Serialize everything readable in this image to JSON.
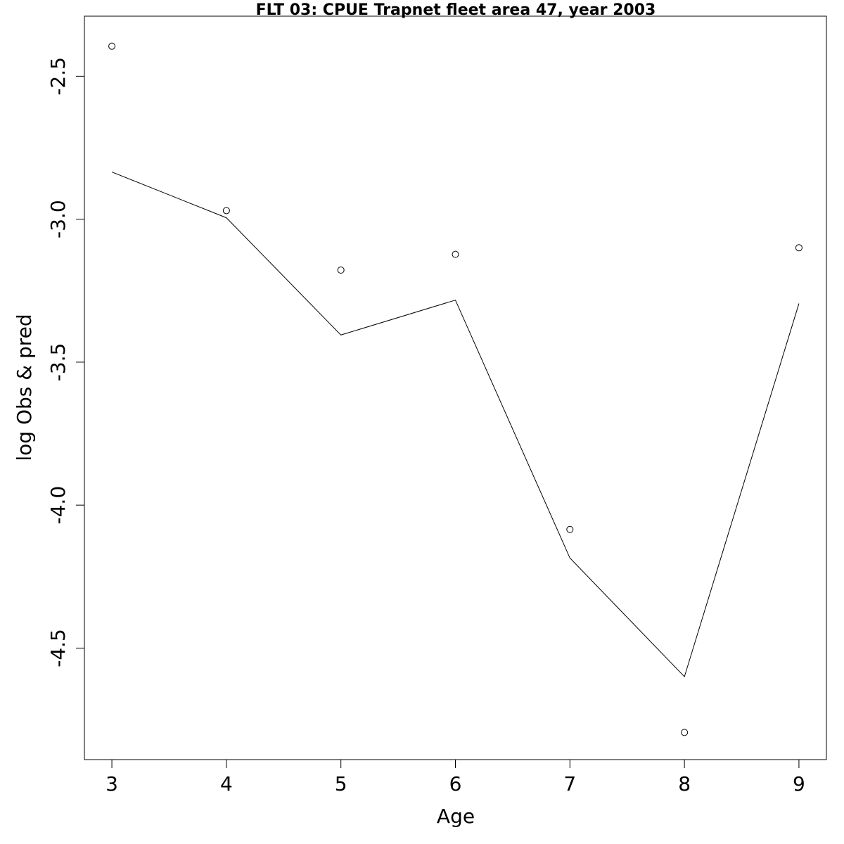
{
  "chart_data": {
    "type": "line",
    "title": "FLT 03: CPUE Trapnet fleet area 47, year 2003",
    "xlabel": "Age",
    "ylabel": "log Obs & pred",
    "x": [
      3,
      4,
      5,
      6,
      7,
      8,
      9
    ],
    "xticks": [
      3,
      4,
      5,
      6,
      7,
      8,
      9
    ],
    "xtick_labels": [
      "3",
      "4",
      "5",
      "6",
      "7",
      "8",
      "9"
    ],
    "yticks": [
      -2.5,
      -3.0,
      -3.5,
      -4.0,
      -4.5
    ],
    "ytick_labels": [
      "-2.5",
      "-3.0",
      "-3.5",
      "-4.0",
      "-4.5"
    ],
    "xlim": [
      2.76,
      9.24
    ],
    "ylim": [
      -4.89,
      -2.29
    ],
    "grid": false,
    "series": [
      {
        "kind": "points",
        "marker": "open-circle",
        "values": [
          -2.395,
          -2.97,
          -3.178,
          -3.123,
          -4.085,
          -4.795,
          -3.1
        ]
      },
      {
        "kind": "line",
        "values": [
          -2.835,
          -2.995,
          -3.405,
          -3.283,
          -4.185,
          -4.6,
          -3.295
        ]
      }
    ]
  }
}
